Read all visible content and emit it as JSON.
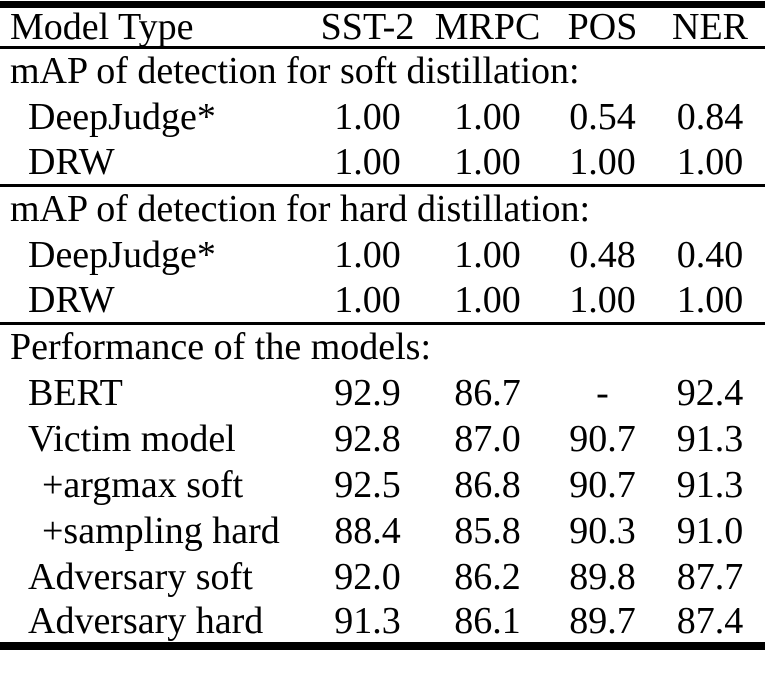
{
  "table": {
    "columns": [
      "Model Type",
      "SST-2",
      "MRPC",
      "POS",
      "NER"
    ],
    "sections": [
      {
        "header": "mAP of detection for soft distillation:",
        "rows": [
          {
            "label": "DeepJudge*",
            "indent": 1,
            "values": [
              "1.00",
              "1.00",
              "0.54",
              "0.84"
            ]
          },
          {
            "label": "DRW",
            "indent": 1,
            "values": [
              "1.00",
              "1.00",
              "1.00",
              "1.00"
            ]
          }
        ]
      },
      {
        "header": "mAP of detection for hard distillation:",
        "rows": [
          {
            "label": "DeepJudge*",
            "indent": 1,
            "values": [
              "1.00",
              "1.00",
              "0.48",
              "0.40"
            ]
          },
          {
            "label": "DRW",
            "indent": 1,
            "values": [
              "1.00",
              "1.00",
              "1.00",
              "1.00"
            ]
          }
        ]
      },
      {
        "header": "Performance of the models:",
        "rows": [
          {
            "label": "BERT",
            "indent": 1,
            "values": [
              "92.9",
              "86.7",
              "-",
              "92.4"
            ]
          },
          {
            "label": "Victim model",
            "indent": 1,
            "values": [
              "92.8",
              "87.0",
              "90.7",
              "91.3"
            ]
          },
          {
            "label": "+argmax soft",
            "indent": 2,
            "values": [
              "92.5",
              "86.8",
              "90.7",
              "91.3"
            ]
          },
          {
            "label": "+sampling hard",
            "indent": 2,
            "values": [
              "88.4",
              "85.8",
              "90.3",
              "91.0"
            ]
          },
          {
            "label": "Adversary soft",
            "indent": 1,
            "values": [
              "92.0",
              "86.2",
              "89.8",
              "87.7"
            ]
          },
          {
            "label": "Adversary hard",
            "indent": 1,
            "values": [
              "91.3",
              "86.1",
              "89.7",
              "87.4"
            ]
          }
        ]
      }
    ]
  },
  "colors": {
    "text": "#000000",
    "background": "#ffffff",
    "rule": "#000000"
  }
}
